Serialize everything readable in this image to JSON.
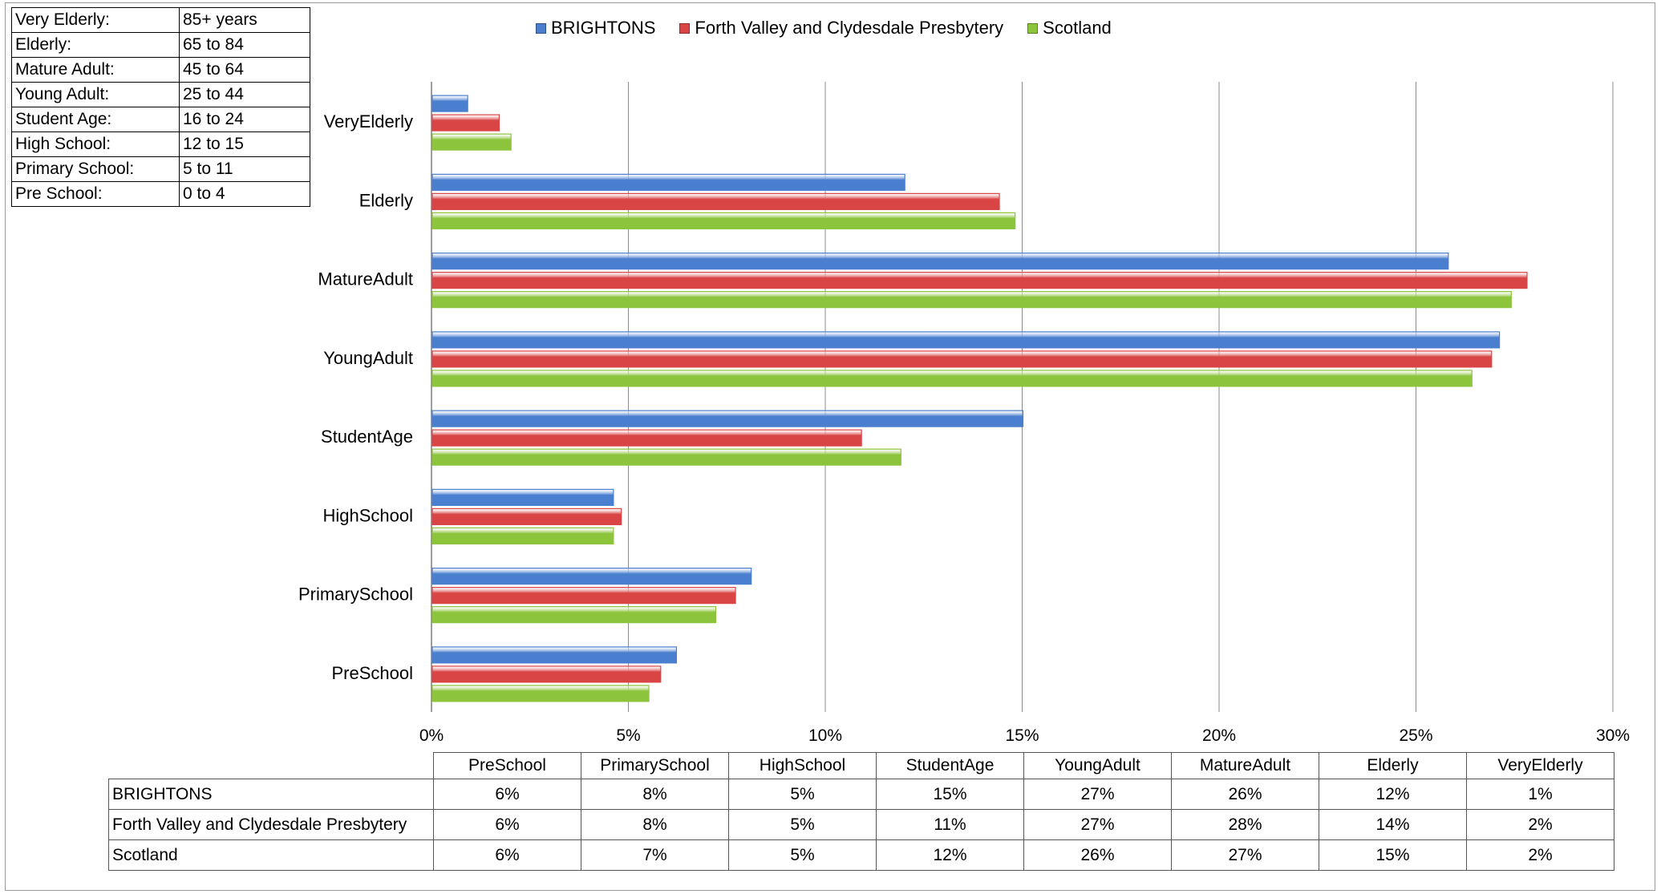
{
  "age_key": [
    {
      "label": "Very Elderly:",
      "range": "85+ years"
    },
    {
      "label": "Elderly:",
      "range": "65 to 84"
    },
    {
      "label": "Mature Adult:",
      "range": "45 to 64"
    },
    {
      "label": "Young Adult:",
      "range": "25 to 44"
    },
    {
      "label": "Student Age:",
      "range": "16 to 24"
    },
    {
      "label": "High School:",
      "range": "12 to 15"
    },
    {
      "label": "Primary School:",
      "range": "5 to 11"
    },
    {
      "label": "Pre School:",
      "range": "0 to 4"
    }
  ],
  "chart_data": {
    "type": "bar",
    "orientation": "horizontal",
    "categories": [
      "PreSchool",
      "PrimarySchool",
      "HighSchool",
      "StudentAge",
      "YoungAdult",
      "MatureAdult",
      "Elderly",
      "VeryElderly"
    ],
    "series": [
      {
        "name": "BRIGHTONS",
        "color": "#4a7fcf",
        "values": [
          6.2,
          8.1,
          4.6,
          15.0,
          27.1,
          25.8,
          12.0,
          0.9
        ]
      },
      {
        "name": "Forth Valley and Clydesdale Presbytery",
        "color": "#d94545",
        "values": [
          5.8,
          7.7,
          4.8,
          10.9,
          26.9,
          27.8,
          14.4,
          1.7
        ]
      },
      {
        "name": "Scotland",
        "color": "#8cc43c",
        "values": [
          5.5,
          7.2,
          4.6,
          11.9,
          26.4,
          27.4,
          14.8,
          2.0
        ]
      }
    ],
    "xlim": [
      0,
      30
    ],
    "xticks": [
      "0%",
      "5%",
      "10%",
      "15%",
      "20%",
      "25%",
      "30%"
    ],
    "grid": true,
    "legend_position": "top",
    "table": {
      "columns": [
        "PreSchool",
        "PrimarySchool",
        "HighSchool",
        "StudentAge",
        "YoungAdult",
        "MatureAdult",
        "Elderly",
        "VeryElderly"
      ],
      "rows": [
        {
          "name": "BRIGHTONS",
          "values": [
            "6%",
            "8%",
            "5%",
            "15%",
            "27%",
            "26%",
            "12%",
            "1%"
          ]
        },
        {
          "name": "Forth Valley and Clydesdale Presbytery",
          "values": [
            "6%",
            "8%",
            "5%",
            "11%",
            "27%",
            "28%",
            "14%",
            "2%"
          ]
        },
        {
          "name": "Scotland",
          "values": [
            "6%",
            "7%",
            "5%",
            "12%",
            "26%",
            "27%",
            "15%",
            "2%"
          ]
        }
      ]
    }
  }
}
